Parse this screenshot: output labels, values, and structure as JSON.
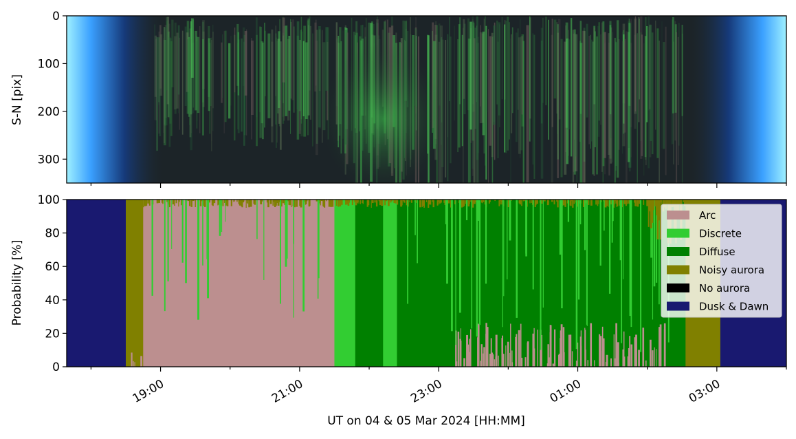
{
  "colors": {
    "arc": "#bc8f8f",
    "discrete": "#32cd32",
    "diffuse": "#008000",
    "noisy": "#808000",
    "none": "#000000",
    "dusk": "#191970"
  },
  "chart_data": [
    {
      "type": "heatmap",
      "description_kind": "keogram image",
      "ylabel": "S-N [pix]",
      "ylim": [
        350,
        0
      ],
      "yticks": [
        "0",
        "100",
        "200",
        "300"
      ],
      "ytick_values": [
        0,
        100,
        200,
        300
      ]
    },
    {
      "type": "area",
      "xlabel": "UT on 04 & 05 Mar 2024 [HH:MM]",
      "ylabel": "Probability [%]",
      "ylim": [
        0,
        100
      ],
      "yticks": [
        "0",
        "20",
        "40",
        "60",
        "80",
        "100"
      ],
      "ytick_values": [
        0,
        20,
        40,
        60,
        80,
        100
      ],
      "xlim_hours": [
        17.65,
        28.0
      ],
      "xticks": [
        "19:00",
        "21:00",
        "23:00",
        "01:00",
        "03:00"
      ],
      "xtick_hours": [
        19,
        21,
        23,
        25,
        27
      ],
      "legend_position": "top-right",
      "series": [
        {
          "name": "Arc",
          "key": "arc"
        },
        {
          "name": "Discrete",
          "key": "discrete"
        },
        {
          "name": "Diffuse",
          "key": "diffuse"
        },
        {
          "name": "Noisy aurora",
          "key": "noisy"
        },
        {
          "name": "No aurora",
          "key": "none"
        },
        {
          "name": "Dusk & Dawn",
          "key": "dusk"
        }
      ],
      "segments_hours": [
        {
          "start": 17.65,
          "end": 18.5,
          "class": "dusk"
        },
        {
          "start": 18.5,
          "end": 18.75,
          "class": "noisy"
        },
        {
          "start": 18.75,
          "end": 21.5,
          "class": "arc"
        },
        {
          "start": 21.5,
          "end": 21.8,
          "class": "discrete"
        },
        {
          "start": 21.8,
          "end": 22.2,
          "class": "diffuse"
        },
        {
          "start": 22.2,
          "end": 22.4,
          "class": "discrete"
        },
        {
          "start": 22.4,
          "end": 23.45,
          "class": "diffuse"
        },
        {
          "start": 23.45,
          "end": 24.0,
          "class": "diffuse"
        },
        {
          "start": 24.0,
          "end": 24.6,
          "class": "diffuse"
        },
        {
          "start": 24.6,
          "end": 25.4,
          "class": "diffuse"
        },
        {
          "start": 25.4,
          "end": 26.3,
          "class": "diffuse"
        },
        {
          "start": 26.3,
          "end": 26.55,
          "class": "diffuse"
        },
        {
          "start": 26.55,
          "end": 27.05,
          "class": "noisy"
        },
        {
          "start": 27.05,
          "end": 28.0,
          "class": "dusk"
        }
      ]
    }
  ]
}
